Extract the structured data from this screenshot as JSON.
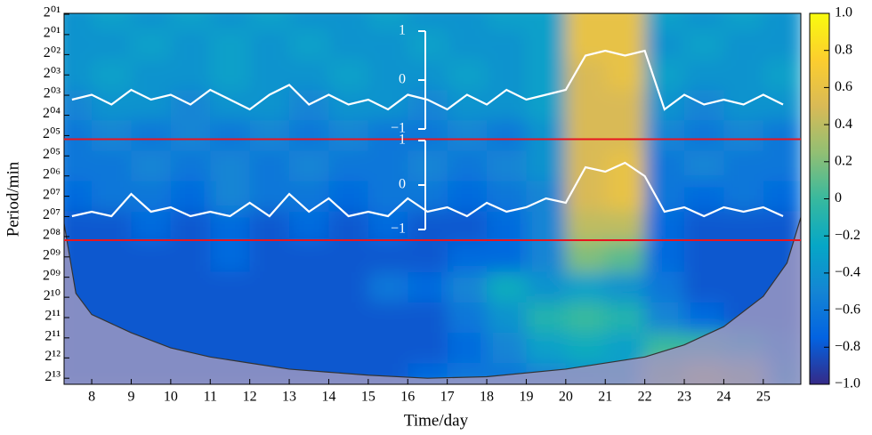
{
  "chart_data": {
    "type": "heatmap",
    "xlabel": "Time/day",
    "ylabel": "Period/min",
    "xlim": [
      7.3,
      25.95
    ],
    "ylim": [
      0.97,
      13.2
    ],
    "xticks": [
      8,
      9,
      10,
      11,
      12,
      13,
      14,
      15,
      16,
      17,
      18,
      19,
      20,
      21,
      22,
      23,
      24,
      25
    ],
    "yticks": [
      {
        "value": 1,
        "label": "2⁰¹"
      },
      {
        "value": 1.67,
        "label": "2⁰¹"
      },
      {
        "value": 2.33,
        "label": "2⁰²"
      },
      {
        "value": 3,
        "label": "2⁰³"
      },
      {
        "value": 3.67,
        "label": "2⁰³"
      },
      {
        "value": 4.33,
        "label": "2⁰⁴"
      },
      {
        "value": 5,
        "label": "2⁰⁵"
      },
      {
        "value": 5.67,
        "label": "2⁰⁵"
      },
      {
        "value": 6.33,
        "label": "2⁰⁶"
      },
      {
        "value": 7,
        "label": "2⁰⁷"
      },
      {
        "value": 7.67,
        "label": "2⁰⁷"
      },
      {
        "value": 8.33,
        "label": "2⁰⁸"
      },
      {
        "value": 9,
        "label": "2⁰⁹"
      },
      {
        "value": 9.67,
        "label": "2⁰⁹"
      },
      {
        "value": 10.33,
        "label": "2¹⁰"
      },
      {
        "value": 11,
        "label": "2¹¹"
      },
      {
        "value": 11.67,
        "label": "2¹¹"
      },
      {
        "value": 12.33,
        "label": "2¹²"
      },
      {
        "value": 13,
        "label": "2¹³"
      }
    ],
    "x": [
      7.5,
      8.5,
      9.5,
      10.5,
      11.5,
      12.5,
      13.5,
      14.5,
      15.5,
      16.5,
      17.5,
      18.5,
      19.5,
      20.5,
      21.5,
      22.5,
      23.5,
      24.5,
      25.5
    ],
    "y": [
      1,
      2,
      3,
      4,
      5,
      6,
      7,
      8,
      9,
      10,
      11,
      12,
      13
    ],
    "z": [
      [
        -0.4,
        -0.3,
        -0.4,
        -0.3,
        -0.4,
        -0.3,
        -0.4,
        -0.4,
        -0.3,
        -0.4,
        -0.4,
        -0.3,
        -0.3,
        0.6,
        0.6,
        -0.3,
        -0.4,
        -0.3,
        -0.4
      ],
      [
        -0.4,
        -0.4,
        -0.3,
        -0.4,
        -0.3,
        -0.4,
        -0.3,
        -0.4,
        -0.4,
        -0.3,
        -0.4,
        -0.4,
        -0.3,
        0.6,
        0.6,
        -0.4,
        -0.3,
        -0.4,
        -0.4
      ],
      [
        -0.4,
        -0.3,
        -0.4,
        -0.4,
        -0.3,
        -0.4,
        -0.4,
        -0.3,
        -0.4,
        -0.4,
        -0.3,
        -0.4,
        -0.3,
        0.5,
        0.6,
        -0.3,
        -0.4,
        -0.4,
        -0.3
      ],
      [
        -0.5,
        -0.4,
        -0.4,
        -0.5,
        -0.4,
        -0.4,
        -0.5,
        -0.4,
        -0.4,
        -0.5,
        -0.4,
        -0.4,
        -0.3,
        0.5,
        0.5,
        -0.4,
        -0.5,
        -0.4,
        -0.4
      ],
      [
        -0.6,
        -0.5,
        -0.6,
        -0.5,
        -0.6,
        -0.5,
        -0.6,
        -0.5,
        -0.6,
        -0.6,
        -0.5,
        -0.6,
        -0.4,
        0.5,
        0.5,
        -0.5,
        -0.6,
        -0.5,
        -0.6
      ],
      [
        -0.6,
        -0.6,
        -0.5,
        -0.6,
        -0.5,
        -0.6,
        -0.5,
        -0.6,
        -0.6,
        -0.5,
        -0.6,
        -0.5,
        -0.4,
        0.5,
        0.6,
        -0.6,
        -0.5,
        -0.6,
        -0.6
      ],
      [
        -0.7,
        -0.6,
        -0.6,
        -0.7,
        -0.5,
        -0.6,
        -0.6,
        -0.7,
        -0.6,
        -0.6,
        -0.7,
        -0.6,
        -0.5,
        0.5,
        0.6,
        -0.6,
        -0.7,
        -0.6,
        -0.7
      ],
      [
        -0.8,
        -0.8,
        -0.7,
        -0.8,
        -0.7,
        -0.8,
        -0.7,
        -0.8,
        -0.7,
        -0.8,
        -0.8,
        -0.7,
        -0.5,
        0.4,
        0.4,
        -0.7,
        -0.8,
        -0.8,
        -0.8
      ],
      [
        -0.8,
        -0.8,
        -0.8,
        -0.8,
        -0.7,
        -0.8,
        -0.8,
        -0.8,
        -0.8,
        -0.8,
        -0.7,
        -0.7,
        -0.5,
        0.2,
        0.1,
        -0.7,
        -0.8,
        -0.8,
        -0.8
      ],
      [
        -0.8,
        -0.8,
        -0.8,
        -0.8,
        -0.8,
        -0.8,
        -0.8,
        -0.8,
        -0.6,
        -0.7,
        -0.5,
        -0.2,
        -0.4,
        -0.3,
        -0.4,
        -0.6,
        -0.8,
        -0.8,
        -0.8
      ],
      [
        -0.8,
        -0.8,
        -0.8,
        -0.8,
        -0.8,
        -0.8,
        -0.8,
        -0.8,
        -0.8,
        -0.8,
        -0.6,
        -0.4,
        -0.1,
        0.0,
        -0.1,
        -0.5,
        -0.7,
        -0.8,
        -0.8
      ],
      [
        -0.8,
        -0.8,
        -0.8,
        -0.8,
        -0.8,
        -0.8,
        -0.8,
        -0.8,
        -0.8,
        -0.8,
        -0.7,
        -0.5,
        -0.3,
        -0.2,
        -0.3,
        0.0,
        0.0,
        -0.2,
        -0.6
      ],
      [
        -0.8,
        -0.8,
        -0.8,
        -0.8,
        -0.8,
        -0.8,
        -0.8,
        -0.8,
        -0.8,
        -0.7,
        -0.6,
        -0.6,
        -0.5,
        -0.4,
        -0.3,
        0.3,
        0.6,
        0.4,
        -0.4
      ]
    ],
    "colormap": [
      "#352a87",
      "#0363e1",
      "#1485d4",
      "#06a7c6",
      "#38b99e",
      "#92bf73",
      "#d9ba56",
      "#fcce2e",
      "#f9fb0e"
    ],
    "colorbar": {
      "lim": [
        -1,
        1
      ],
      "ticks": [
        {
          "value": 1,
          "label": "1.0"
        },
        0.8,
        0.6,
        0.4,
        0.2,
        0,
        {
          "value": -0.2,
          "label": "−0.2"
        },
        {
          "value": -0.4,
          "label": "−0.4"
        },
        {
          "value": -0.6,
          "label": "−0.6"
        },
        {
          "value": -0.8,
          "label": "−0.8"
        },
        {
          "value": -1,
          "label": "−1.0"
        }
      ]
    },
    "coi": {
      "color": "#9a97c2",
      "x": [
        7.3,
        7.6,
        8,
        9,
        10,
        11,
        12,
        13,
        14,
        15,
        16.5,
        18,
        20,
        22,
        23,
        24,
        25,
        25.6,
        25.95
      ],
      "y": [
        7.9,
        10.2,
        10.9,
        11.5,
        12.0,
        12.3,
        12.5,
        12.7,
        12.8,
        12.9,
        13.0,
        12.95,
        12.7,
        12.3,
        11.9,
        11.3,
        10.3,
        9.2,
        7.7
      ]
    },
    "hlines": [
      {
        "value": 5.12,
        "color": "#e8141e"
      },
      {
        "value": 8.45,
        "color": "#e8141e"
      }
    ],
    "overlays": [
      {
        "color": "#ffffff",
        "ylim": [
          -1,
          1
        ],
        "yticks": [
          1,
          0,
          {
            "value": -1,
            "label": "−1"
          }
        ],
        "x": [
          7.5,
          8,
          8.5,
          9,
          9.5,
          10,
          10.5,
          11,
          11.5,
          12,
          12.5,
          13,
          13.5,
          14,
          14.5,
          15,
          15.5,
          16,
          16.5,
          17,
          17.5,
          18,
          18.5,
          19,
          19.5,
          20,
          20.5,
          21,
          21.5,
          22,
          22.5,
          23,
          23.5,
          24,
          24.5,
          25,
          25.5
        ],
        "values": [
          -0.4,
          -0.3,
          -0.5,
          -0.2,
          -0.4,
          -0.3,
          -0.5,
          -0.2,
          -0.4,
          -0.6,
          -0.3,
          -0.1,
          -0.5,
          -0.3,
          -0.5,
          -0.4,
          -0.6,
          -0.3,
          -0.4,
          -0.6,
          -0.3,
          -0.5,
          -0.2,
          -0.4,
          -0.3,
          -0.2,
          0.5,
          0.6,
          0.5,
          0.6,
          -0.6,
          -0.3,
          -0.5,
          -0.4,
          -0.5,
          -0.3,
          -0.5
        ]
      },
      {
        "color": "#ffffff",
        "ylim": [
          -1,
          1
        ],
        "yticks": [
          1,
          0,
          {
            "value": -1,
            "label": "−1"
          }
        ],
        "x": [
          7.5,
          8,
          8.5,
          9,
          9.5,
          10,
          10.5,
          11,
          11.5,
          12,
          12.5,
          13,
          13.5,
          14,
          14.5,
          15,
          15.5,
          16,
          16.5,
          17,
          17.5,
          18,
          18.5,
          19,
          19.5,
          20,
          20.5,
          21,
          21.5,
          22,
          22.5,
          23,
          23.5,
          24,
          24.5,
          25,
          25.5
        ],
        "values": [
          -0.7,
          -0.6,
          -0.7,
          -0.2,
          -0.6,
          -0.5,
          -0.7,
          -0.6,
          -0.7,
          -0.4,
          -0.7,
          -0.2,
          -0.6,
          -0.3,
          -0.7,
          -0.6,
          -0.7,
          -0.3,
          -0.6,
          -0.5,
          -0.7,
          -0.4,
          -0.6,
          -0.5,
          -0.3,
          -0.4,
          0.4,
          0.3,
          0.5,
          0.2,
          -0.6,
          -0.5,
          -0.7,
          -0.5,
          -0.6,
          -0.5,
          -0.7
        ]
      }
    ]
  }
}
